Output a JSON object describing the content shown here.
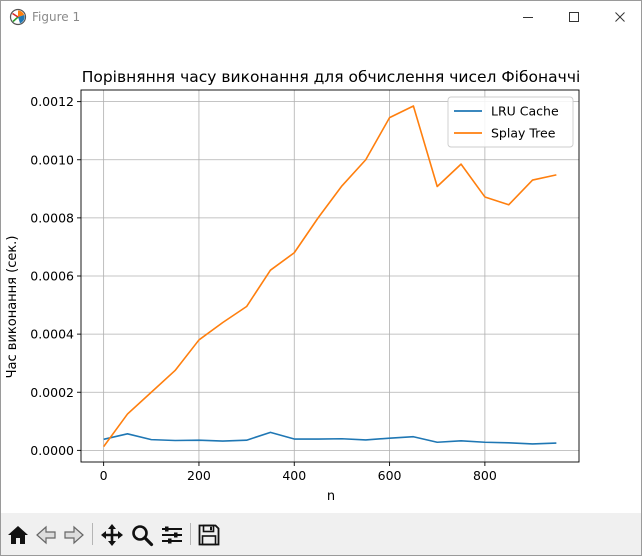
{
  "window": {
    "title": "Figure 1"
  },
  "icons": {
    "app": "matplotlib-figure-icon",
    "minimize": "minimize-icon",
    "maximize": "maximize-icon",
    "close": "close-icon"
  },
  "toolbar": {
    "buttons": [
      "home-icon",
      "back-arrow-icon",
      "forward-arrow-icon",
      "pan-move-icon",
      "zoom-magnifier-icon",
      "subplots-config-icon",
      "save-floppy-icon"
    ]
  },
  "colors": {
    "series1": "#1f77b4",
    "series2": "#ff7f0e",
    "grid": "#b0b0b0"
  },
  "chart_data": {
    "type": "line",
    "title": "Порівняння часу виконання для обчислення чисел Фібоначчі",
    "xlabel": "n",
    "ylabel": "Час виконання (сек.)",
    "xlim": [
      -47.5,
      997.5
    ],
    "ylim": [
      -4e-05,
      0.00124
    ],
    "xticks": [
      0,
      200,
      400,
      600,
      800
    ],
    "xtick_labels": [
      "0",
      "200",
      "400",
      "600",
      "800"
    ],
    "yticks": [
      0,
      0.0002,
      0.0004,
      0.0006,
      0.0008,
      0.001,
      0.0012
    ],
    "ytick_labels": [
      "0.0000",
      "0.0002",
      "0.0004",
      "0.0006",
      "0.0008",
      "0.0010",
      "0.0012"
    ],
    "grid": true,
    "legend": "top-right",
    "x": [
      0,
      50,
      100,
      150,
      200,
      250,
      300,
      350,
      400,
      450,
      500,
      550,
      600,
      650,
      700,
      750,
      800,
      850,
      900,
      950
    ],
    "series": [
      {
        "name": "LRU Cache",
        "color": "#1f77b4",
        "values": [
          3.8e-05,
          5.7e-05,
          3.7e-05,
          3.4e-05,
          3.5e-05,
          3.2e-05,
          3.5e-05,
          6.2e-05,
          3.9e-05,
          3.9e-05,
          4e-05,
          3.6e-05,
          4.2e-05,
          4.7e-05,
          2.8e-05,
          3.3e-05,
          2.8e-05,
          2.6e-05,
          2.2e-05,
          2.5e-05
        ]
      },
      {
        "name": "Splay Tree",
        "color": "#ff7f0e",
        "values": [
          1.3e-05,
          0.000125,
          0.0002,
          0.000275,
          0.00038,
          0.00044,
          0.000495,
          0.00062,
          0.00068,
          0.0008,
          0.00091,
          0.001,
          0.001145,
          0.001185,
          0.000908,
          0.000985,
          0.000872,
          0.000845,
          0.00093,
          0.000948
        ]
      }
    ]
  }
}
